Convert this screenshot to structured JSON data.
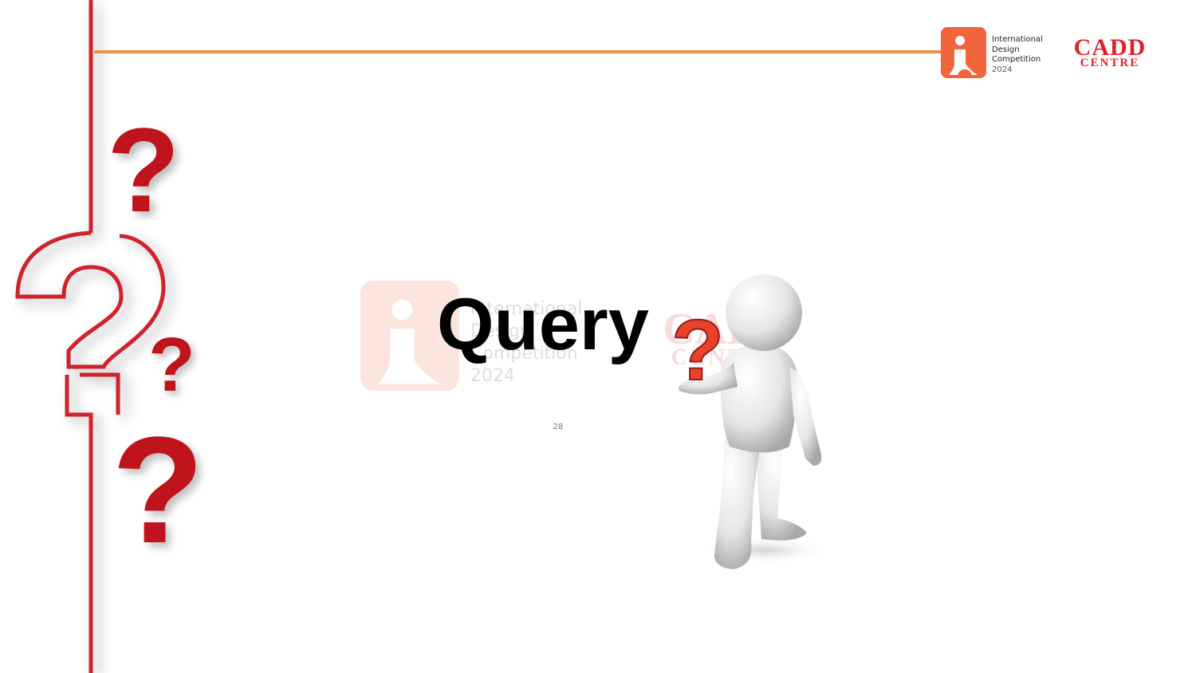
{
  "slide": {
    "title": "Query",
    "page_number": "28"
  },
  "logos": {
    "idc": {
      "text": "International\nDesign\nCompetition",
      "year": "2024"
    },
    "cadd": {
      "line1": "CADD",
      "line2": "CENTRE"
    }
  },
  "colors": {
    "accent_orange": "#e8914a",
    "brand_red": "#e41f26",
    "question_red": "#c0141c",
    "idc_orange": "#f2643a"
  },
  "icons": [
    "question-mark-icon",
    "person-holding-question-figure"
  ]
}
